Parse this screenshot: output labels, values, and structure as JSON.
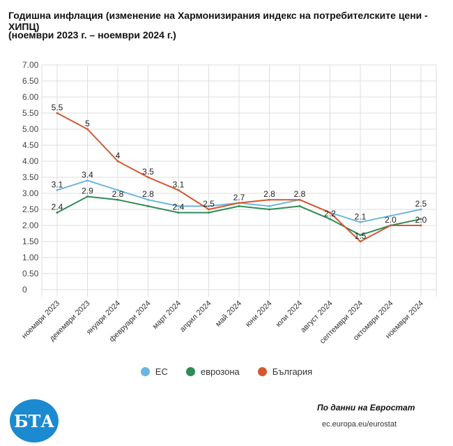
{
  "title_line1": "Годишна инфлация (изменение на Хармонизирания индекс на потребителските цени - ХИПЦ)",
  "title_line2": "(ноември 2023 г. – ноември 2024 г.)",
  "source": "По данни на Евростат",
  "source_url": "ec.europa.eu/eurostat",
  "logo_text": "БТА",
  "chart_data": {
    "type": "line",
    "title": "Годишна инфлация (изменение на Хармонизирания индекс на потребителските цени - ХИПЦ)",
    "ylim": [
      0,
      7
    ],
    "yticks": [
      "0",
      "0.50",
      "1.00",
      "1.50",
      "2.00",
      "2.50",
      "3.00",
      "3.50",
      "4.00",
      "4.50",
      "5.00",
      "5.50",
      "6.00",
      "6.50",
      "7.00"
    ],
    "categories": [
      "ноември 2023",
      "декември 2023",
      "януари 2024",
      "февруари 2024",
      "март 2024",
      "април 2024",
      "май 2024",
      "юни 2024",
      "юли 2024",
      "август 2024",
      "септември 2024",
      "октомври 2024",
      "ноември 2024"
    ],
    "legend_position": "bottom",
    "series": [
      {
        "name": "ЕС",
        "color": "#6bb6dc",
        "values": [
          3.1,
          3.4,
          3.1,
          2.8,
          2.6,
          2.6,
          2.7,
          2.6,
          2.8,
          2.4,
          2.1,
          2.3,
          2.5
        ],
        "labels": [
          "3.1",
          "3.4",
          null,
          "2.8",
          null,
          null,
          null,
          null,
          null,
          null,
          "2.1",
          null,
          "2.5"
        ]
      },
      {
        "name": "еврозона",
        "color": "#2e8b57",
        "values": [
          2.4,
          2.9,
          2.8,
          2.6,
          2.4,
          2.4,
          2.6,
          2.5,
          2.6,
          2.2,
          1.7,
          2.0,
          2.2
        ],
        "labels": [
          "2.4",
          "2.9",
          "2.8",
          null,
          "2.4",
          null,
          null,
          null,
          null,
          "2.2",
          null,
          null,
          null
        ]
      },
      {
        "name": "България",
        "color": "#d4582e",
        "values": [
          5.5,
          5.0,
          4.0,
          3.5,
          3.1,
          2.5,
          2.7,
          2.8,
          2.8,
          2.4,
          1.5,
          2.0,
          2.0
        ],
        "labels": [
          "5.5",
          "5",
          "4",
          "3.5",
          "3.1",
          "2.5",
          "2.7",
          "2.8",
          "2.8",
          null,
          "1.5",
          "2.0",
          "2.0"
        ]
      }
    ]
  }
}
